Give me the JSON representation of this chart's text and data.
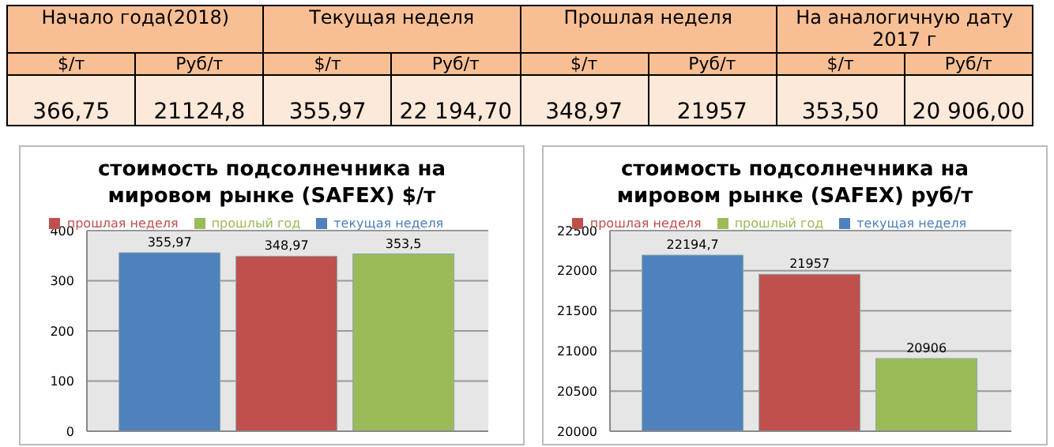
{
  "chart_data": [
    {
      "type": "other",
      "categories": [
        "Начало года(2018)",
        "Текущая неделя",
        "Прошлая неделя",
        "На аналогичную дату 2017 г"
      ],
      "annotations": [
        "$/т",
        "Руб/т",
        "$/т",
        "Руб/т",
        "$/т",
        "Руб/т",
        "$/т",
        "Руб/т",
        "366,75",
        "21124,8",
        "355,97",
        "22 194,70",
        "348,97",
        "21957",
        "353,50",
        "20 906,00"
      ]
    },
    {
      "type": "bar",
      "title": "стоимость подсолнечника на мировом рынке (SAFEX) $/т",
      "categories": [
        null
      ],
      "series": [
        {
          "name": "текущая неделя",
          "color": "#4f81bd",
          "values": [
            355.97
          ],
          "value_labels": [
            "355,97"
          ]
        },
        {
          "name": "прошлая неделя",
          "color": "#c0504d",
          "values": [
            348.97
          ],
          "value_labels": [
            "348,97"
          ]
        },
        {
          "name": "прошлый год",
          "color": "#9bbb59",
          "values": [
            353.5
          ],
          "value_labels": [
            "353,5"
          ]
        }
      ],
      "ylim": [
        0,
        400
      ],
      "yticks": [
        0,
        100,
        200,
        300,
        400
      ],
      "grid": "y",
      "legend": "top"
    },
    {
      "type": "bar",
      "title": "стоимость подсолнечника на мировом рынке (SAFEX) руб/т",
      "categories": [
        null
      ],
      "series": [
        {
          "name": "текущая неделя",
          "color": "#4f81bd",
          "values": [
            22194.7
          ],
          "value_labels": [
            "22194,7"
          ]
        },
        {
          "name": "прошлая неделя",
          "color": "#c0504d",
          "values": [
            21957
          ],
          "value_labels": [
            "21957"
          ]
        },
        {
          "name": "прошлый год",
          "color": "#9bbb59",
          "values": [
            20906
          ],
          "value_labels": [
            "20906"
          ]
        }
      ],
      "ylim": [
        20000,
        22500
      ],
      "yticks": [
        20000,
        20500,
        21000,
        21500,
        22000,
        22500
      ],
      "grid": "y",
      "legend": "top"
    }
  ]
}
